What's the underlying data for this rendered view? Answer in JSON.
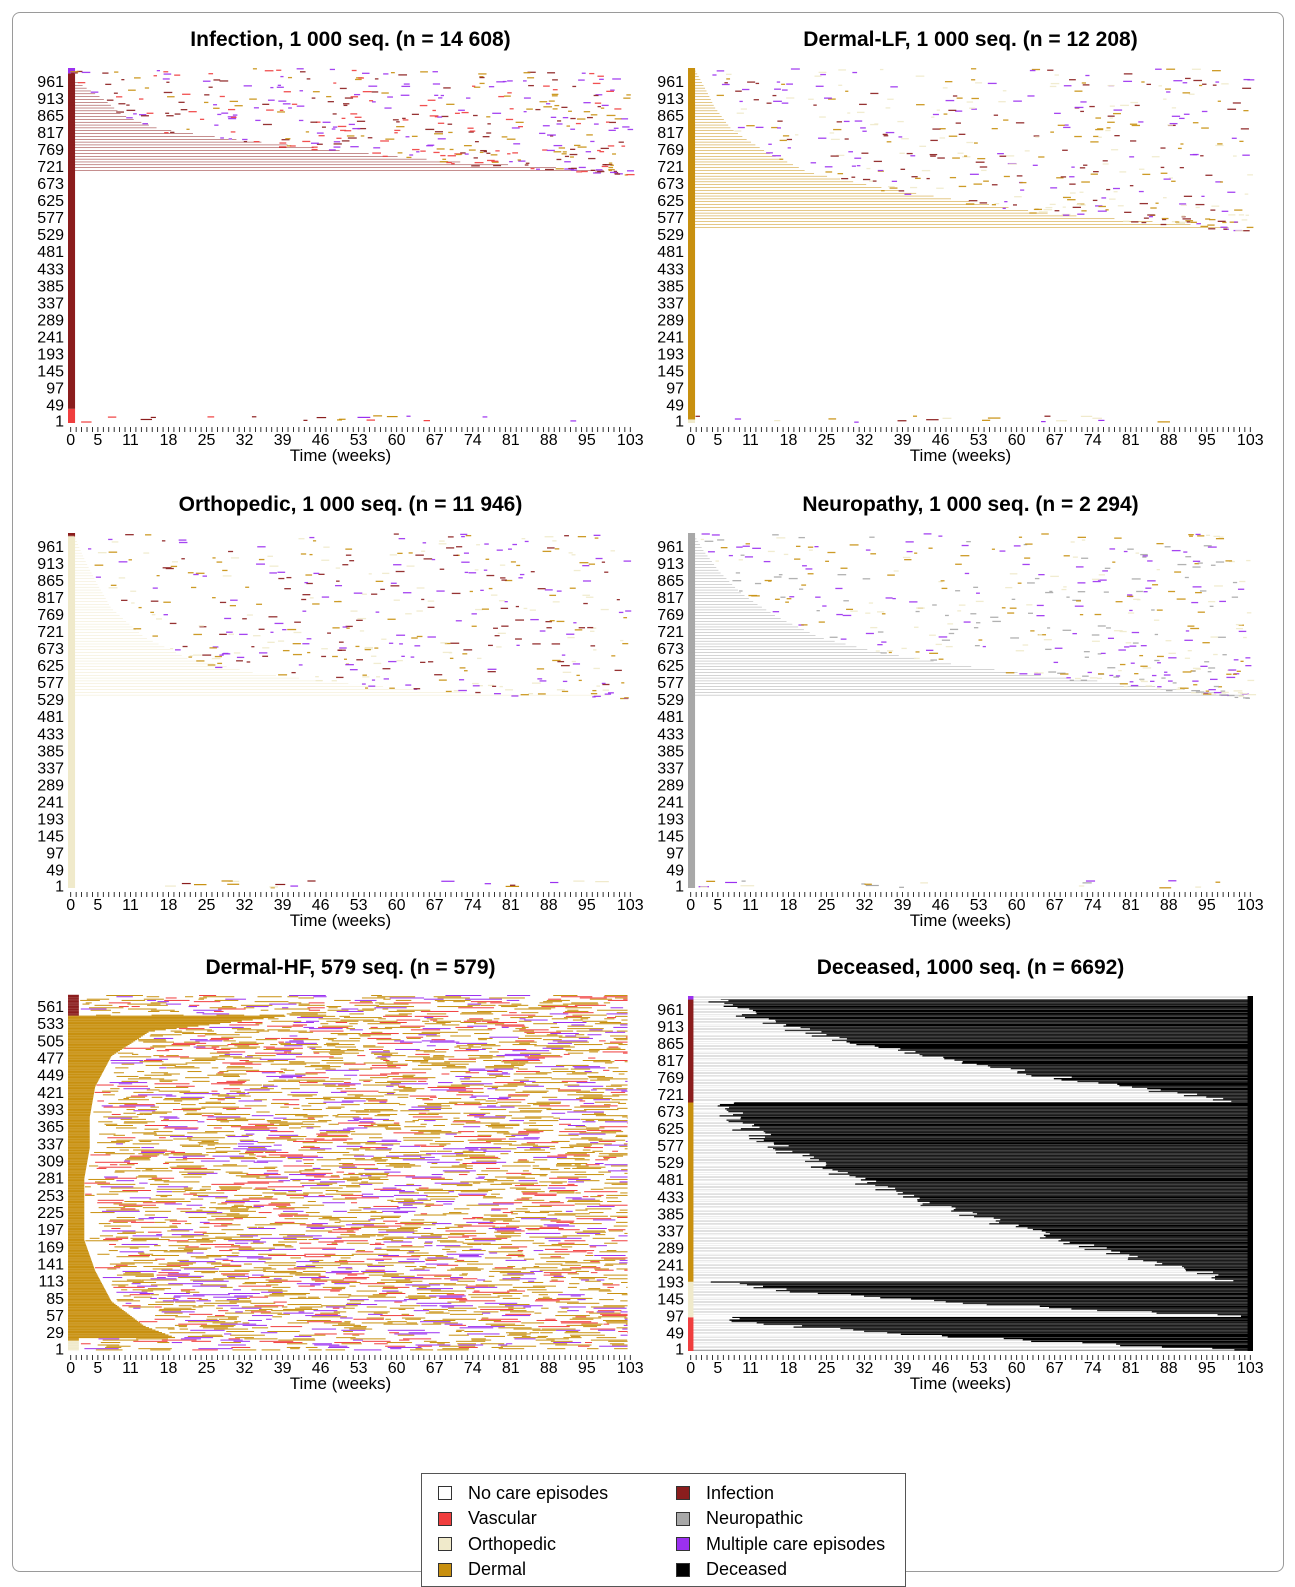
{
  "states": {
    "none": {
      "label": "No care episodes",
      "color": "#ffffff"
    },
    "vascular": {
      "label": "Vascular",
      "color": "#f03e3e"
    },
    "ortho": {
      "label": "Orthopedic",
      "color": "#f0eacb"
    },
    "dermal": {
      "label": "Dermal",
      "color": "#c8900f"
    },
    "infection": {
      "label": "Infection",
      "color": "#8b1d1d"
    },
    "neuro": {
      "label": "Neuropathic",
      "color": "#a8a8a8"
    },
    "multiple": {
      "label": "Multiple care episodes",
      "color": "#9b30f0"
    },
    "deceased": {
      "label": "Deceased",
      "color": "#000000"
    }
  },
  "legend_order": [
    "none",
    "infection",
    "vascular",
    "neuro",
    "ortho",
    "multiple",
    "dermal",
    "deceased"
  ],
  "chart_data": [
    {
      "type": "heatmap",
      "title": "Infection, 1 000 seq. (n = 14 608)",
      "xlabel": "Time (weeks)",
      "x_ticks": [
        0,
        5,
        11,
        18,
        25,
        32,
        39,
        46,
        53,
        60,
        67,
        74,
        81,
        88,
        95,
        103
      ],
      "y_ticks": [
        1,
        49,
        97,
        145,
        193,
        241,
        289,
        337,
        385,
        433,
        481,
        529,
        577,
        625,
        673,
        721,
        769,
        817,
        865,
        913,
        961
      ],
      "n_seq": 1000,
      "n_weeks": 104,
      "bands": [
        {
          "from": 1,
          "to": 40,
          "state": "vascular",
          "sparse": "vascular"
        },
        {
          "from": 41,
          "to": 985,
          "state": "infection"
        },
        {
          "from": 986,
          "to": 1000,
          "state": "multiple"
        }
      ],
      "exit_curve": [
        [
          962,
          1
        ],
        [
          930,
          4
        ],
        [
          900,
          7
        ],
        [
          860,
          10
        ],
        [
          820,
          17
        ],
        [
          790,
          32
        ],
        [
          760,
          50
        ],
        [
          730,
          70
        ],
        [
          700,
          103
        ]
      ],
      "background": "none",
      "sparse_states": [
        "infection",
        "vascular",
        "dermal",
        "multiple"
      ]
    },
    {
      "type": "heatmap",
      "title": "Dermal-LF, 1 000 seq. (n = 12 208)",
      "xlabel": "Time (weeks)",
      "x_ticks": [
        0,
        5,
        11,
        18,
        25,
        32,
        39,
        46,
        53,
        60,
        67,
        74,
        81,
        88,
        95,
        103
      ],
      "y_ticks": [
        1,
        49,
        97,
        145,
        193,
        241,
        289,
        337,
        385,
        433,
        481,
        529,
        577,
        625,
        673,
        721,
        769,
        817,
        865,
        913,
        961
      ],
      "n_seq": 1000,
      "n_weeks": 104,
      "bands": [
        {
          "from": 1,
          "to": 10,
          "state": "ortho"
        },
        {
          "from": 11,
          "to": 1000,
          "state": "dermal"
        }
      ],
      "exit_curve": [
        [
          995,
          1
        ],
        [
          940,
          3
        ],
        [
          880,
          5
        ],
        [
          820,
          8
        ],
        [
          760,
          14
        ],
        [
          700,
          22
        ],
        [
          660,
          34
        ],
        [
          620,
          50
        ],
        [
          580,
          68
        ],
        [
          540,
          103
        ]
      ],
      "background": "none",
      "sparse_states": [
        "dermal",
        "ortho",
        "infection",
        "multiple"
      ]
    },
    {
      "type": "heatmap",
      "title": "Orthopedic, 1 000 seq. (n = 11 946)",
      "xlabel": "Time (weeks)",
      "x_ticks": [
        0,
        5,
        11,
        18,
        25,
        32,
        39,
        46,
        53,
        60,
        67,
        74,
        81,
        88,
        95,
        103
      ],
      "y_ticks": [
        1,
        49,
        97,
        145,
        193,
        241,
        289,
        337,
        385,
        433,
        481,
        529,
        577,
        625,
        673,
        721,
        769,
        817,
        865,
        913,
        961
      ],
      "n_seq": 1000,
      "n_weeks": 104,
      "bands": [
        {
          "from": 1,
          "to": 990,
          "state": "ortho"
        },
        {
          "from": 991,
          "to": 1000,
          "state": "infection"
        }
      ],
      "exit_curve": [
        [
          990,
          1
        ],
        [
          920,
          3
        ],
        [
          860,
          5
        ],
        [
          780,
          8
        ],
        [
          700,
          14
        ],
        [
          640,
          22
        ],
        [
          600,
          34
        ],
        [
          570,
          50
        ],
        [
          545,
          70
        ],
        [
          535,
          103
        ]
      ],
      "background": "none",
      "sparse_states": [
        "ortho",
        "dermal",
        "infection",
        "multiple"
      ]
    },
    {
      "type": "heatmap",
      "title": "Neuropathy, 1 000 seq. (n = 2 294)",
      "xlabel": "Time (weeks)",
      "x_ticks": [
        0,
        5,
        11,
        18,
        25,
        32,
        39,
        46,
        53,
        60,
        67,
        74,
        81,
        88,
        95,
        103
      ],
      "y_ticks": [
        1,
        49,
        97,
        145,
        193,
        241,
        289,
        337,
        385,
        433,
        481,
        529,
        577,
        625,
        673,
        721,
        769,
        817,
        865,
        913,
        961
      ],
      "n_seq": 1000,
      "n_weeks": 104,
      "bands": [
        {
          "from": 1,
          "to": 1000,
          "state": "neuro"
        }
      ],
      "exit_curve": [
        [
          990,
          1
        ],
        [
          940,
          3
        ],
        [
          880,
          6
        ],
        [
          820,
          10
        ],
        [
          760,
          16
        ],
        [
          700,
          24
        ],
        [
          660,
          34
        ],
        [
          620,
          50
        ],
        [
          590,
          66
        ],
        [
          560,
          86
        ],
        [
          535,
          103
        ]
      ],
      "background": "none",
      "sparse_states": [
        "neuro",
        "ortho",
        "dermal",
        "multiple"
      ]
    },
    {
      "type": "heatmap",
      "title": "Dermal-HF, 579 seq. (n = 579)",
      "xlabel": "Time (weeks)",
      "x_ticks": [
        0,
        5,
        11,
        18,
        25,
        32,
        39,
        46,
        53,
        60,
        67,
        74,
        81,
        88,
        95,
        103
      ],
      "y_ticks": [
        1,
        29,
        57,
        85,
        113,
        141,
        169,
        197,
        225,
        253,
        281,
        309,
        337,
        365,
        393,
        421,
        449,
        477,
        505,
        533,
        561
      ],
      "n_seq": 579,
      "n_weeks": 104,
      "bands": [
        {
          "from": 1,
          "to": 15,
          "state": "ortho"
        },
        {
          "from": 16,
          "to": 545,
          "state": "dermal"
        },
        {
          "from": 546,
          "to": 579,
          "state": "infection"
        }
      ],
      "exit_curve": [
        [
          545,
          40
        ],
        [
          520,
          15
        ],
        [
          480,
          8
        ],
        [
          430,
          5
        ],
        [
          380,
          4
        ],
        [
          330,
          4
        ],
        [
          280,
          3
        ],
        [
          230,
          3
        ],
        [
          180,
          3
        ],
        [
          130,
          5
        ],
        [
          80,
          8
        ],
        [
          40,
          14
        ],
        [
          20,
          20
        ]
      ],
      "background": "dense",
      "sparse_states": [
        "dermal",
        "dermal",
        "dermal",
        "vascular",
        "multiple"
      ]
    },
    {
      "type": "heatmap",
      "title": "Deceased, 1000 seq. (n = 6692)",
      "xlabel": "Time (weeks)",
      "x_ticks": [
        0,
        5,
        11,
        18,
        25,
        32,
        39,
        46,
        53,
        60,
        67,
        74,
        81,
        88,
        95,
        103
      ],
      "y_ticks": [
        1,
        49,
        97,
        145,
        193,
        241,
        289,
        337,
        385,
        433,
        481,
        529,
        577,
        625,
        673,
        721,
        769,
        817,
        865,
        913,
        961
      ],
      "n_seq": 1000,
      "n_weeks": 104,
      "bands": [
        {
          "from": 1,
          "to": 95,
          "state": "vascular"
        },
        {
          "from": 96,
          "to": 195,
          "state": "ortho"
        },
        {
          "from": 196,
          "to": 700,
          "state": "dermal"
        },
        {
          "from": 701,
          "to": 990,
          "state": "infection"
        },
        {
          "from": 991,
          "to": 1000,
          "state": "multiple"
        }
      ],
      "background": "deceased",
      "sparse_states": [
        "neuro"
      ]
    }
  ]
}
